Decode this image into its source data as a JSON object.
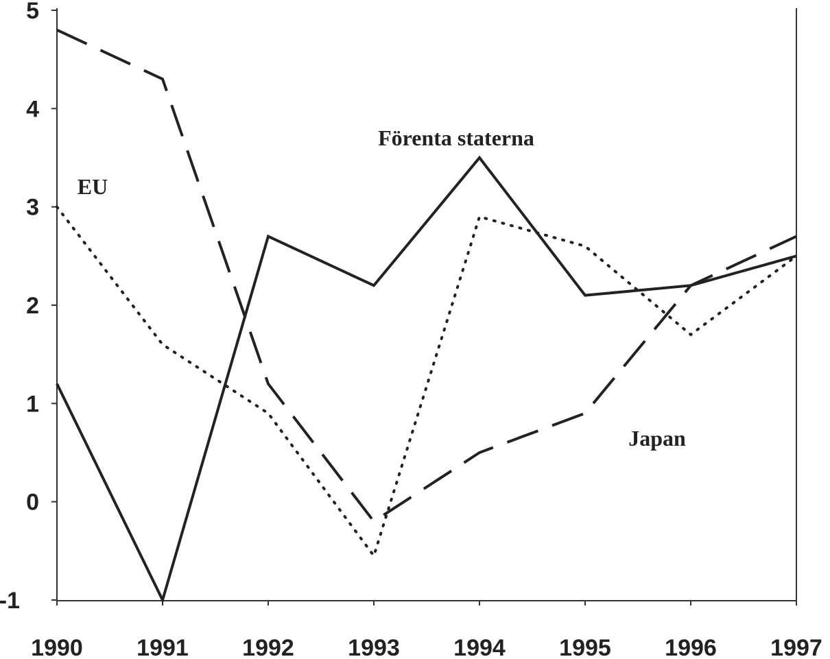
{
  "chart_data": {
    "type": "line",
    "x": [
      1990,
      1991,
      1992,
      1993,
      1994,
      1995,
      1996,
      1997
    ],
    "series": [
      {
        "name": "Förenta staterna",
        "color": "#222222",
        "dash": "solid",
        "values": [
          1.2,
          -1,
          2.7,
          2.2,
          3.5,
          2.1,
          2.2,
          2.5
        ]
      },
      {
        "name": "Japan",
        "color": "#222222",
        "dash": "dashed",
        "values": [
          4.8,
          4.3,
          1.2,
          -0.2,
          0.5,
          0.9,
          2.2,
          2.7
        ]
      },
      {
        "name": "EU",
        "color": "#222222",
        "dash": "dotted",
        "values": [
          3.0,
          1.6,
          0.9,
          -0.55,
          2.9,
          2.6,
          1.7,
          2.5
        ]
      }
    ],
    "xlim": [
      1990,
      1997
    ],
    "xticks": [
      1990,
      1991,
      1992,
      1993,
      1994,
      1995,
      1996,
      1997
    ],
    "ylim": [
      -1,
      5
    ],
    "yticks": [
      -1,
      0,
      1,
      2,
      3,
      4,
      5
    ]
  }
}
